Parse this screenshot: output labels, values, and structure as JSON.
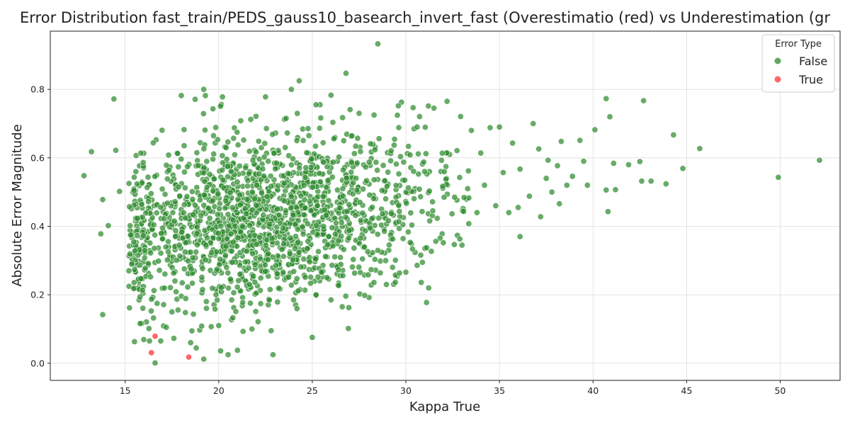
{
  "chart_data": {
    "type": "scatter",
    "title": "Error Distribution fast_train/PEDS_gauss10_basearch_invert_fast (Overestimatio (red) vs Underestimation (gr",
    "xlabel": "Kappa True",
    "ylabel": "Absolute Error Magnitude",
    "xlim": [
      11,
      53.2
    ],
    "ylim": [
      -0.05,
      0.97
    ],
    "xticks": [
      15,
      20,
      25,
      30,
      35,
      40,
      45,
      50
    ],
    "yticks": [
      0.0,
      0.2,
      0.4,
      0.6,
      0.8
    ],
    "grid": true,
    "legend": {
      "title": "Error Type",
      "placement": "top-right",
      "entries": [
        {
          "label": "False",
          "color": "#2e8b2e"
        },
        {
          "label": "True",
          "color": "#ff4d4d"
        }
      ]
    },
    "series": [
      {
        "name": "False",
        "color": "#2e8b2e",
        "cluster": {
          "count": 1750,
          "x_mean": 22.5,
          "x_sd": 4.2,
          "x_min": 15.2,
          "x_max": 33.5,
          "y_mean": 0.42,
          "y_sd": 0.12,
          "y_min": 0.04,
          "y_max": 0.82
        },
        "points": [
          [
            12.8,
            0.548
          ],
          [
            13.2,
            0.618
          ],
          [
            13.7,
            0.378
          ],
          [
            13.8,
            0.142
          ],
          [
            13.8,
            0.478
          ],
          [
            14.1,
            0.402
          ],
          [
            14.4,
            0.772
          ],
          [
            14.5,
            0.622
          ],
          [
            14.7,
            0.502
          ],
          [
            15.5,
            0.063
          ],
          [
            18.5,
            0.06
          ],
          [
            19.2,
            0.012
          ],
          [
            16.6,
            0.001
          ],
          [
            16.3,
            0.065
          ],
          [
            16.9,
            0.065
          ],
          [
            20.1,
            0.036
          ],
          [
            20.5,
            0.025
          ],
          [
            21.0,
            0.038
          ],
          [
            22.9,
            0.025
          ],
          [
            19.2,
            0.8
          ],
          [
            20.2,
            0.778
          ],
          [
            18.0,
            0.782
          ],
          [
            22.5,
            0.778
          ],
          [
            24.3,
            0.825
          ],
          [
            25.2,
            0.755
          ],
          [
            26.8,
            0.847
          ],
          [
            28.5,
            0.933
          ],
          [
            26.0,
            0.783
          ],
          [
            27.5,
            0.73
          ],
          [
            28.3,
            0.725
          ],
          [
            29.6,
            0.752
          ],
          [
            30.6,
            0.69
          ],
          [
            31.5,
            0.745
          ],
          [
            32.2,
            0.765
          ],
          [
            33.5,
            0.68
          ],
          [
            34.0,
            0.614
          ],
          [
            34.5,
            0.688
          ],
          [
            35.0,
            0.69
          ],
          [
            35.7,
            0.643
          ],
          [
            36.1,
            0.567
          ],
          [
            36.8,
            0.7
          ],
          [
            37.1,
            0.626
          ],
          [
            37.6,
            0.593
          ],
          [
            38.1,
            0.577
          ],
          [
            38.3,
            0.648
          ],
          [
            38.6,
            0.52
          ],
          [
            38.9,
            0.546
          ],
          [
            39.3,
            0.651
          ],
          [
            39.5,
            0.59
          ],
          [
            39.7,
            0.52
          ],
          [
            40.1,
            0.682
          ],
          [
            40.7,
            0.506
          ],
          [
            40.7,
            0.773
          ],
          [
            40.8,
            0.443
          ],
          [
            40.9,
            0.72
          ],
          [
            41.1,
            0.584
          ],
          [
            41.2,
            0.507
          ],
          [
            41.9,
            0.58
          ],
          [
            42.5,
            0.589
          ],
          [
            42.6,
            0.532
          ],
          [
            42.7,
            0.767
          ],
          [
            43.1,
            0.532
          ],
          [
            43.9,
            0.524
          ],
          [
            44.3,
            0.667
          ],
          [
            44.8,
            0.569
          ],
          [
            45.7,
            0.627
          ],
          [
            49.9,
            0.543
          ],
          [
            52.1,
            0.593
          ],
          [
            35.5,
            0.44
          ],
          [
            36.1,
            0.37
          ],
          [
            36.6,
            0.488
          ],
          [
            37.2,
            0.428
          ],
          [
            37.8,
            0.5
          ],
          [
            38.2,
            0.466
          ],
          [
            34.8,
            0.46
          ],
          [
            35.2,
            0.557
          ],
          [
            33.8,
            0.44
          ],
          [
            34.2,
            0.52
          ],
          [
            36.0,
            0.455
          ],
          [
            37.5,
            0.54
          ],
          [
            33.0,
            0.345
          ],
          [
            32.0,
            0.352
          ],
          [
            31.6,
            0.356
          ],
          [
            30.0,
            0.266
          ],
          [
            30.6,
            0.286
          ],
          [
            27.8,
            0.198
          ],
          [
            26.6,
            0.165
          ],
          [
            26.0,
            0.185
          ],
          [
            25.2,
            0.2
          ],
          [
            24.0,
            0.185
          ],
          [
            22.8,
            0.095
          ],
          [
            21.3,
            0.093
          ],
          [
            20.0,
            0.11
          ],
          [
            17.2,
            0.105
          ],
          [
            17.5,
            0.15
          ],
          [
            15.8,
            0.194
          ],
          [
            15.2,
            0.27
          ],
          [
            31.0,
            0.56
          ],
          [
            32.6,
            0.485
          ],
          [
            33.3,
            0.51
          ]
        ]
      },
      {
        "name": "True",
        "color": "#ff4d4d",
        "points": [
          [
            16.6,
            0.079
          ],
          [
            16.4,
            0.031
          ],
          [
            18.4,
            0.018
          ]
        ]
      }
    ]
  }
}
